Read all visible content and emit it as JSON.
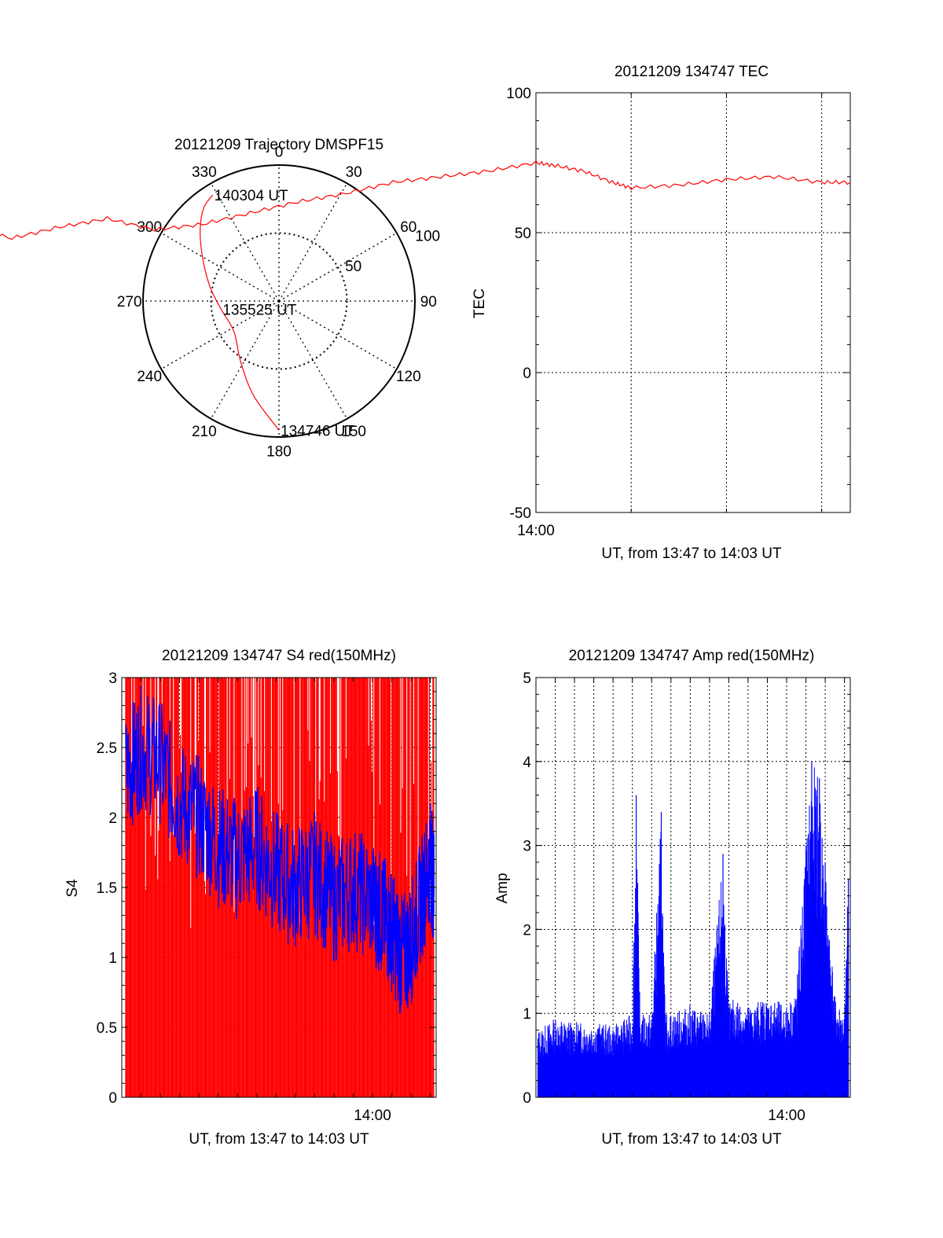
{
  "colors": {
    "red": "#ff0000",
    "blue": "#0000ff",
    "black": "#000000",
    "grid": "#000000"
  },
  "chart_data": [
    {
      "id": "polar",
      "type": "polar",
      "title": "20121209 Trajectory DMSPF15",
      "angle_labels": [
        {
          "angle": 0,
          "label": "0"
        },
        {
          "angle": 30,
          "label": "30"
        },
        {
          "angle": 60,
          "label": "60"
        },
        {
          "angle": 90,
          "label": "90"
        },
        {
          "angle": 120,
          "label": "120"
        },
        {
          "angle": 150,
          "label": "150"
        },
        {
          "angle": 180,
          "label": "180"
        },
        {
          "angle": 210,
          "label": "210"
        },
        {
          "angle": 240,
          "label": "240"
        },
        {
          "angle": 270,
          "label": "270"
        },
        {
          "angle": 300,
          "label": "300"
        },
        {
          "angle": 330,
          "label": "330"
        }
      ],
      "radius_max": 100,
      "radial_ticks": [
        {
          "r": 50,
          "label": "50"
        },
        {
          "r": 100,
          "label": "100"
        }
      ],
      "trajectory": {
        "points": [
          {
            "az": 180,
            "r": 95
          },
          {
            "az": 195,
            "r": 72
          },
          {
            "az": 212,
            "r": 53
          },
          {
            "az": 236,
            "r": 40
          },
          {
            "az": 262,
            "r": 43
          },
          {
            "az": 282,
            "r": 52
          },
          {
            "az": 300,
            "r": 65
          },
          {
            "az": 312,
            "r": 78
          },
          {
            "az": 321,
            "r": 88
          },
          {
            "az": 328,
            "r": 92
          }
        ],
        "annotations": [
          {
            "label": "134746 UT",
            "az": 180,
            "r": 95
          },
          {
            "label": "135525 UT",
            "az": 262,
            "r": 43
          },
          {
            "label": "140304 UT",
            "az": 328,
            "r": 92
          }
        ]
      }
    },
    {
      "id": "tec",
      "type": "line",
      "title": "20121209 134747 TEC",
      "ylabel": "TEC",
      "xlabel": "UT, from 13:47 to 14:03 UT",
      "ylim": [
        -50,
        100
      ],
      "yticks": [
        -50,
        0,
        50,
        100
      ],
      "xlim_minutes": [
        13.0,
        16.3
      ],
      "xtick": {
        "minute": 13.0,
        "label": "14:00"
      },
      "series": [
        {
          "color": "#ff0000",
          "x": [
            0,
            0.5,
            1,
            1.5,
            2,
            2.5,
            3,
            3.5,
            4,
            4.5,
            5,
            5.5,
            6,
            6.5,
            7,
            7.5,
            8,
            8.5,
            9,
            9.5,
            10,
            10.5,
            11,
            11.5,
            12,
            12.5,
            13,
            13.2,
            13.5,
            13.8,
            14,
            14.5,
            15,
            15.5,
            16,
            16.3
          ],
          "y": [
            -1,
            2,
            8,
            11,
            16,
            19,
            22,
            26,
            24,
            30,
            34,
            38,
            41,
            46,
            52,
            48,
            52,
            55,
            51,
            53,
            57,
            61,
            64,
            68,
            70,
            72,
            75,
            74,
            72,
            68,
            66,
            67,
            69,
            70,
            68,
            68
          ]
        }
      ]
    },
    {
      "id": "s4",
      "type": "line",
      "title": "20121209 134747 S4 red(150MHz)",
      "ylabel": "S4",
      "xlabel": "UT, from 13:47 to 14:03 UT",
      "ylim": [
        0,
        3
      ],
      "yticks": [
        0,
        0.5,
        1,
        1.5,
        2,
        2.5,
        3
      ],
      "ytick_labels": [
        "0",
        "0.5",
        "1",
        "1.5",
        "2",
        "2.5",
        "3"
      ],
      "xlim_minutes": [
        0,
        16.3
      ],
      "xtick": {
        "minute": 13.0,
        "label": "14:00"
      },
      "series": [
        {
          "color": "#ff0000",
          "x": [
            0.2,
            16.2
          ],
          "y": [
            2.0,
            1.5
          ]
        },
        {
          "color": "#0000ff",
          "x": [
            0.2,
            1,
            2,
            3,
            4,
            5,
            6,
            7,
            8,
            9,
            10,
            11,
            12,
            13,
            13.5,
            14,
            14.5,
            15,
            15.5,
            16,
            16.2
          ],
          "y": [
            2.3,
            2.5,
            2.4,
            2.1,
            2.0,
            1.8,
            1.7,
            1.8,
            1.6,
            1.5,
            1.6,
            1.4,
            1.5,
            1.4,
            1.3,
            1.2,
            1.0,
            1.1,
            1.4,
            1.7,
            1.5
          ]
        }
      ]
    },
    {
      "id": "amp",
      "type": "line",
      "title": "20121209 134747 Amp red(150MHz)",
      "ylabel": "Amp",
      "xlabel": "UT, from 13:47 to 14:03 UT",
      "ylim": [
        0,
        5
      ],
      "yticks": [
        0,
        1,
        2,
        3,
        4,
        5
      ],
      "xlim_minutes": [
        0,
        16.3
      ],
      "xtick": {
        "minute": 13.0,
        "label": "14:00"
      },
      "series": [
        {
          "color": "#0000ff",
          "x": [
            0.1,
            1,
            2,
            3,
            4,
            5,
            5.2,
            5.4,
            6,
            6.5,
            6.7,
            7,
            8,
            9,
            9.7,
            10,
            10.3,
            11,
            12,
            13,
            13.5,
            14,
            14.3,
            14.7,
            15,
            15.5,
            16,
            16.2
          ],
          "y": [
            0.8,
            0.95,
            0.9,
            0.9,
            0.85,
            1.0,
            3.6,
            1.0,
            1.0,
            3.4,
            1.0,
            1.0,
            1.1,
            1.0,
            2.9,
            1.1,
            1.2,
            1.1,
            1.2,
            1.1,
            1.3,
            3.0,
            4.0,
            3.8,
            2.8,
            1.2,
            1.0,
            2.6
          ]
        }
      ]
    }
  ]
}
